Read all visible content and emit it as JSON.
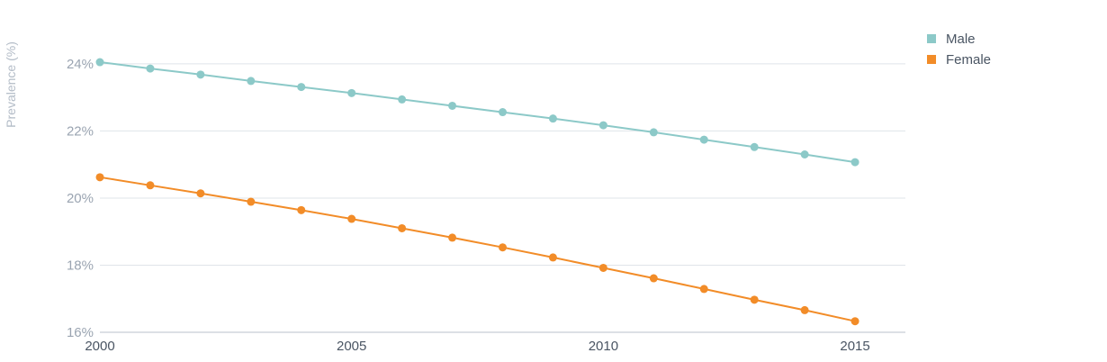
{
  "chart_data": {
    "type": "line",
    "title": "",
    "xlabel": "",
    "ylabel": "Prevalence (%)",
    "x": [
      2000,
      2001,
      2002,
      2003,
      2004,
      2005,
      2006,
      2007,
      2008,
      2009,
      2010,
      2011,
      2012,
      2013,
      2014,
      2015
    ],
    "x_ticks": [
      2000,
      2005,
      2010,
      2015
    ],
    "x_tick_labels": [
      "2000",
      "2005",
      "2010",
      "2015"
    ],
    "xlim": [
      2000,
      2016
    ],
    "y_ticks": [
      16,
      18,
      20,
      22,
      24
    ],
    "y_tick_labels": [
      "16%",
      "18%",
      "20%",
      "22%",
      "24%"
    ],
    "ylim": [
      16,
      25.5
    ],
    "grid": "horizontal",
    "legend_position": "top-right",
    "series": [
      {
        "name": "Male",
        "color": "#8cc9c8",
        "values": [
          24.05,
          23.86,
          23.68,
          23.49,
          23.31,
          23.13,
          22.94,
          22.75,
          22.56,
          22.37,
          22.17,
          21.96,
          21.74,
          21.52,
          21.3,
          21.07
        ]
      },
      {
        "name": "Female",
        "color": "#f28c28",
        "values": [
          20.62,
          20.38,
          20.14,
          19.89,
          19.64,
          19.38,
          19.1,
          18.82,
          18.53,
          18.23,
          17.92,
          17.61,
          17.29,
          16.97,
          16.66,
          16.33
        ]
      }
    ]
  }
}
